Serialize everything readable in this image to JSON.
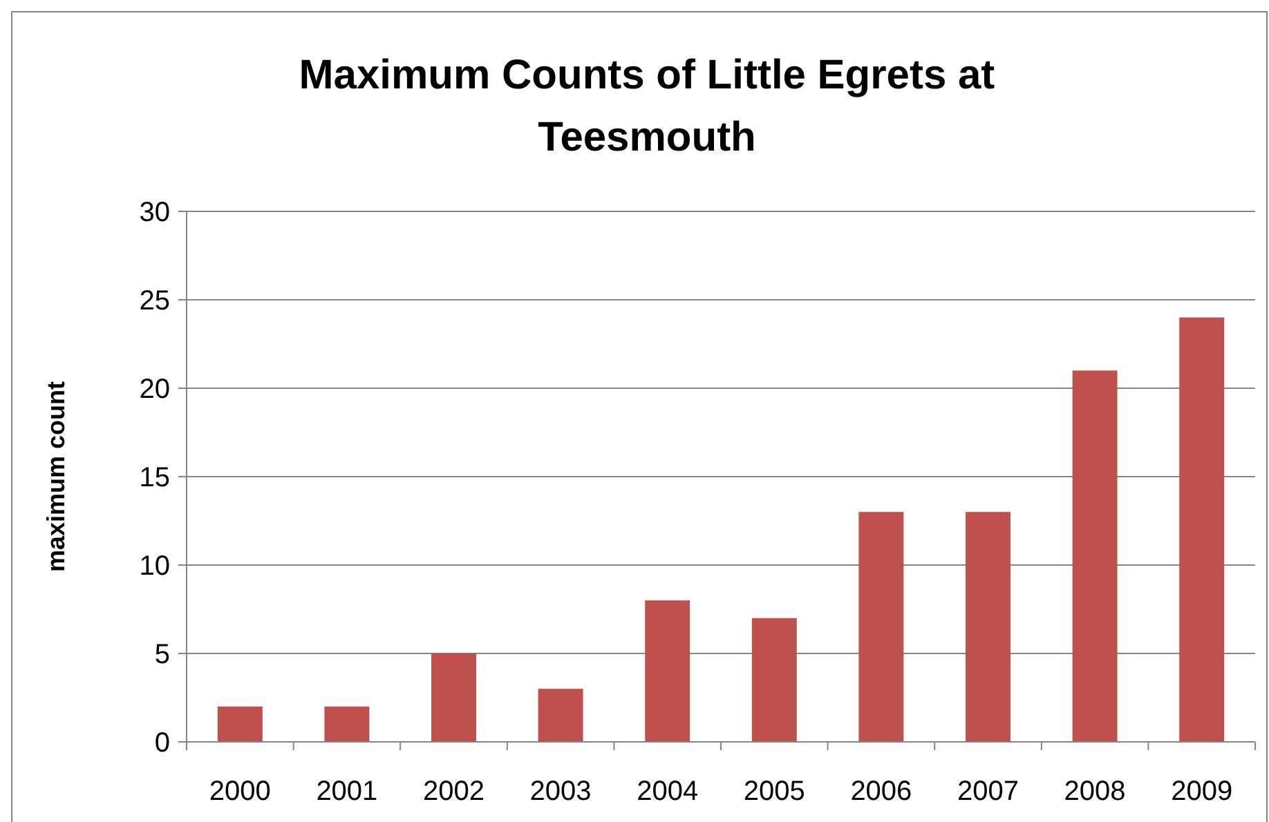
{
  "chart_data": {
    "type": "bar",
    "title": "Maximum Counts of Little Egrets at Teesmouth",
    "ylabel": "maximum count",
    "categories": [
      "2000",
      "2001",
      "2002",
      "2003",
      "2004",
      "2005",
      "2006",
      "2007",
      "2008",
      "2009"
    ],
    "values": [
      2,
      2,
      5,
      3,
      8,
      7,
      13,
      13,
      21,
      24
    ],
    "color": "#c0504d",
    "ylim": [
      0,
      30
    ],
    "yticks": [
      0,
      5,
      10,
      15,
      20,
      25,
      30
    ],
    "grid": "y"
  }
}
